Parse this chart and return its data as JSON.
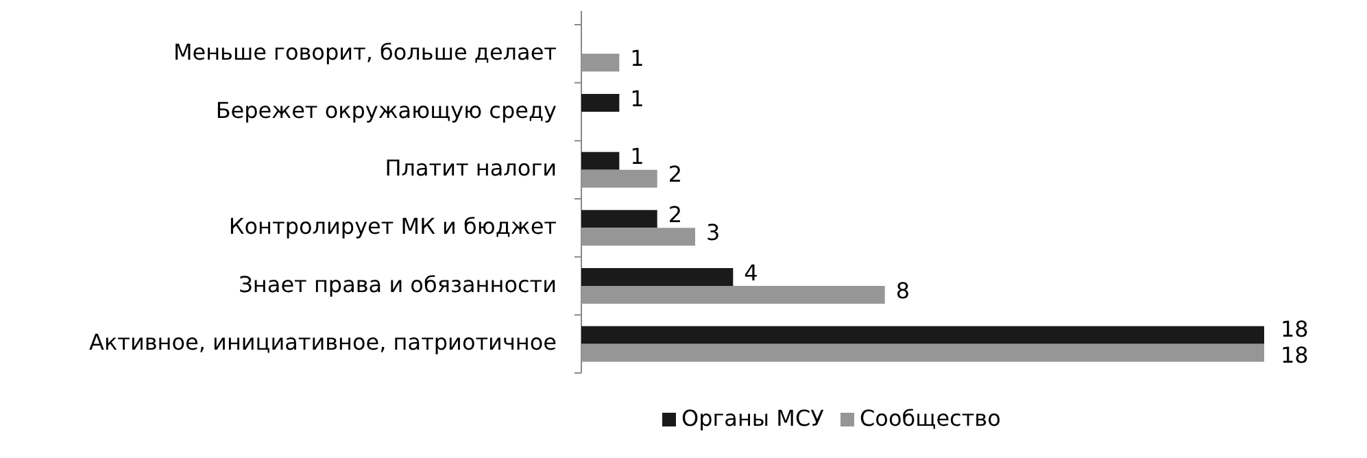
{
  "chart_data": {
    "type": "bar",
    "orientation": "horizontal",
    "categories": [
      "Меньше говорит, больше делает",
      "Бережет окружающую среду",
      "Платит налоги",
      "Контролирует МК и бюджет",
      "Знает права и обязанности",
      "Активное, инициативное, патриотичное"
    ],
    "series": [
      {
        "name": "Органы МСУ",
        "color": "#1a1a1a",
        "values": [
          null,
          1,
          1,
          2,
          4,
          18
        ]
      },
      {
        "name": "Сообщество",
        "color": "#969696",
        "values": [
          1,
          null,
          2,
          3,
          8,
          18
        ]
      }
    ],
    "data_labels": true,
    "legend": "bottom"
  }
}
